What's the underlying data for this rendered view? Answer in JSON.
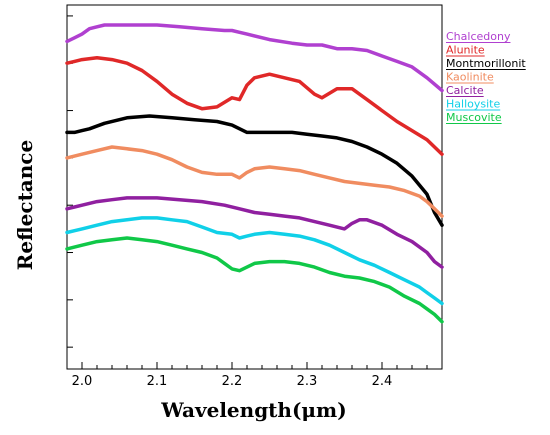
{
  "chart_data": {
    "type": "line",
    "xlabel": "Wavelength(μm)",
    "ylabel": "Reflectance",
    "xlim": [
      1.98,
      2.48
    ],
    "ylim": [
      0,
      1
    ],
    "x_ticks": [
      "2.0",
      "2.1",
      "2.2",
      "2.3",
      "2.4"
    ],
    "x_tick_values": [
      2.0,
      2.1,
      2.2,
      2.3,
      2.4
    ],
    "y_ticks": [
      0.06,
      0.19,
      0.32,
      0.45,
      0.58,
      0.71,
      0.84,
      0.97
    ],
    "y_tick_labels_shown": false,
    "grid": false,
    "legend_position": "top-right",
    "series": [
      {
        "name": "Chalcedony",
        "color": "#b040d0",
        "x": [
          1.98,
          1.99,
          2.0,
          2.01,
          2.02,
          2.03,
          2.05,
          2.07,
          2.1,
          2.13,
          2.16,
          2.19,
          2.2,
          2.21,
          2.22,
          2.25,
          2.28,
          2.3,
          2.32,
          2.34,
          2.36,
          2.38,
          2.4,
          2.42,
          2.44,
          2.46,
          2.48
        ],
        "y": [
          0.9,
          0.91,
          0.92,
          0.935,
          0.94,
          0.945,
          0.945,
          0.945,
          0.945,
          0.94,
          0.935,
          0.93,
          0.93,
          0.925,
          0.92,
          0.905,
          0.895,
          0.89,
          0.89,
          0.88,
          0.88,
          0.875,
          0.86,
          0.845,
          0.83,
          0.8,
          0.765
        ]
      },
      {
        "name": "Alunite",
        "color": "#e02828",
        "x": [
          1.98,
          1.99,
          2.0,
          2.02,
          2.04,
          2.06,
          2.08,
          2.1,
          2.12,
          2.14,
          2.16,
          2.18,
          2.2,
          2.21,
          2.22,
          2.23,
          2.25,
          2.27,
          2.29,
          2.31,
          2.32,
          2.34,
          2.36,
          2.38,
          2.4,
          2.42,
          2.44,
          2.46,
          2.48
        ],
        "y": [
          0.84,
          0.845,
          0.85,
          0.855,
          0.85,
          0.84,
          0.82,
          0.79,
          0.755,
          0.73,
          0.715,
          0.72,
          0.745,
          0.74,
          0.78,
          0.8,
          0.81,
          0.8,
          0.79,
          0.755,
          0.745,
          0.77,
          0.77,
          0.74,
          0.71,
          0.68,
          0.655,
          0.63,
          0.59
        ]
      },
      {
        "name": "Montmorillonit",
        "color": "#000000",
        "x": [
          1.98,
          1.99,
          2.0,
          2.01,
          2.03,
          2.06,
          2.09,
          2.12,
          2.15,
          2.18,
          2.2,
          2.22,
          2.25,
          2.28,
          2.3,
          2.32,
          2.34,
          2.36,
          2.38,
          2.4,
          2.42,
          2.44,
          2.46,
          2.47,
          2.48
        ],
        "y": [
          0.65,
          0.65,
          0.655,
          0.66,
          0.675,
          0.69,
          0.695,
          0.69,
          0.685,
          0.68,
          0.67,
          0.65,
          0.65,
          0.65,
          0.645,
          0.64,
          0.635,
          0.625,
          0.61,
          0.59,
          0.565,
          0.53,
          0.48,
          0.43,
          0.395
        ]
      },
      {
        "name": "Kaolinite",
        "color": "#f08c60",
        "x": [
          1.98,
          1.99,
          2.0,
          2.02,
          2.04,
          2.06,
          2.08,
          2.1,
          2.12,
          2.14,
          2.16,
          2.18,
          2.2,
          2.21,
          2.22,
          2.23,
          2.25,
          2.27,
          2.29,
          2.31,
          2.33,
          2.35,
          2.37,
          2.39,
          2.41,
          2.43,
          2.45,
          2.46,
          2.47,
          2.48
        ],
        "y": [
          0.58,
          0.585,
          0.59,
          0.6,
          0.61,
          0.605,
          0.6,
          0.59,
          0.575,
          0.555,
          0.54,
          0.535,
          0.535,
          0.525,
          0.54,
          0.55,
          0.555,
          0.55,
          0.545,
          0.535,
          0.525,
          0.515,
          0.51,
          0.505,
          0.5,
          0.49,
          0.475,
          0.46,
          0.44,
          0.42
        ]
      },
      {
        "name": "Calcite",
        "color": "#9020a0",
        "x": [
          1.98,
          1.99,
          2.0,
          2.02,
          2.04,
          2.06,
          2.08,
          2.1,
          2.13,
          2.16,
          2.19,
          2.21,
          2.23,
          2.25,
          2.27,
          2.29,
          2.31,
          2.33,
          2.35,
          2.36,
          2.37,
          2.38,
          2.4,
          2.42,
          2.44,
          2.46,
          2.47,
          2.48
        ],
        "y": [
          0.44,
          0.445,
          0.45,
          0.46,
          0.465,
          0.47,
          0.47,
          0.47,
          0.465,
          0.46,
          0.45,
          0.44,
          0.43,
          0.425,
          0.42,
          0.415,
          0.405,
          0.395,
          0.385,
          0.4,
          0.41,
          0.41,
          0.395,
          0.37,
          0.35,
          0.32,
          0.295,
          0.28
        ]
      },
      {
        "name": "Halloysite",
        "color": "#10d0e8",
        "x": [
          1.98,
          1.99,
          2.0,
          2.02,
          2.04,
          2.06,
          2.08,
          2.1,
          2.12,
          2.14,
          2.16,
          2.18,
          2.2,
          2.21,
          2.22,
          2.23,
          2.25,
          2.27,
          2.29,
          2.31,
          2.33,
          2.35,
          2.37,
          2.39,
          2.41,
          2.43,
          2.45,
          2.46,
          2.47,
          2.48
        ],
        "y": [
          0.375,
          0.38,
          0.385,
          0.395,
          0.405,
          0.41,
          0.415,
          0.415,
          0.41,
          0.405,
          0.39,
          0.375,
          0.37,
          0.36,
          0.365,
          0.37,
          0.375,
          0.37,
          0.365,
          0.355,
          0.34,
          0.32,
          0.3,
          0.285,
          0.265,
          0.245,
          0.225,
          0.21,
          0.195,
          0.18
        ]
      },
      {
        "name": "Muscovite",
        "color": "#10c848",
        "x": [
          1.98,
          1.99,
          2.0,
          2.02,
          2.04,
          2.06,
          2.08,
          2.1,
          2.12,
          2.14,
          2.16,
          2.18,
          2.19,
          2.2,
          2.21,
          2.22,
          2.23,
          2.25,
          2.27,
          2.29,
          2.31,
          2.33,
          2.35,
          2.37,
          2.39,
          2.41,
          2.43,
          2.45,
          2.46,
          2.47,
          2.48
        ],
        "y": [
          0.33,
          0.335,
          0.34,
          0.35,
          0.355,
          0.36,
          0.355,
          0.35,
          0.34,
          0.33,
          0.32,
          0.305,
          0.29,
          0.275,
          0.27,
          0.28,
          0.29,
          0.295,
          0.295,
          0.29,
          0.28,
          0.265,
          0.255,
          0.25,
          0.24,
          0.225,
          0.2,
          0.18,
          0.165,
          0.15,
          0.13
        ]
      }
    ]
  }
}
